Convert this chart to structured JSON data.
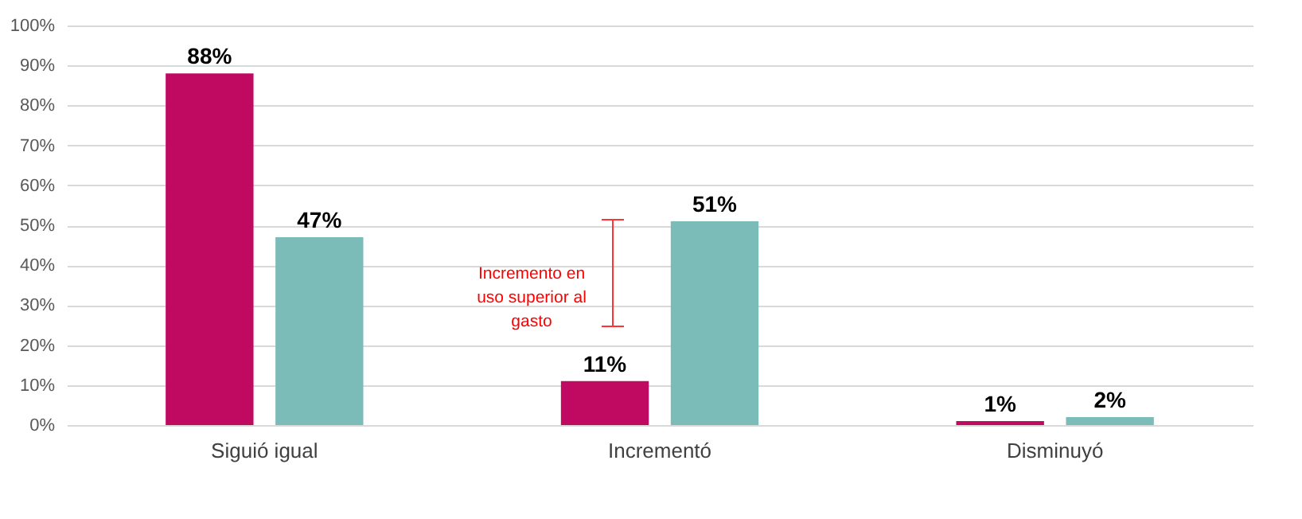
{
  "chart_data": {
    "type": "bar",
    "categories": [
      "Siguió igual",
      "Incrementó",
      "Disminuyó"
    ],
    "series": [
      {
        "color": "#c00a62",
        "values": [
          88,
          11,
          1
        ],
        "value_labels": [
          "88%",
          "11%",
          "1%"
        ]
      },
      {
        "color": "#7bbcb9",
        "values": [
          47,
          51,
          2
        ],
        "value_labels": [
          "47%",
          "51%",
          "2%"
        ]
      }
    ],
    "ylim": [
      0,
      100
    ],
    "yticks": [
      {
        "value": 0,
        "label": "0%"
      },
      {
        "value": 10,
        "label": "10%"
      },
      {
        "value": 20,
        "label": "20%"
      },
      {
        "value": 30,
        "label": "30%"
      },
      {
        "value": 40,
        "label": "40%"
      },
      {
        "value": 50,
        "label": "50%"
      },
      {
        "value": 60,
        "label": "60%"
      },
      {
        "value": 70,
        "label": "70%"
      },
      {
        "value": 80,
        "label": "80%"
      },
      {
        "value": 90,
        "label": "90%"
      },
      {
        "value": 100,
        "label": "100%"
      }
    ],
    "grid": "y",
    "annotations": [
      "Incremento en uso superior al gasto"
    ]
  }
}
